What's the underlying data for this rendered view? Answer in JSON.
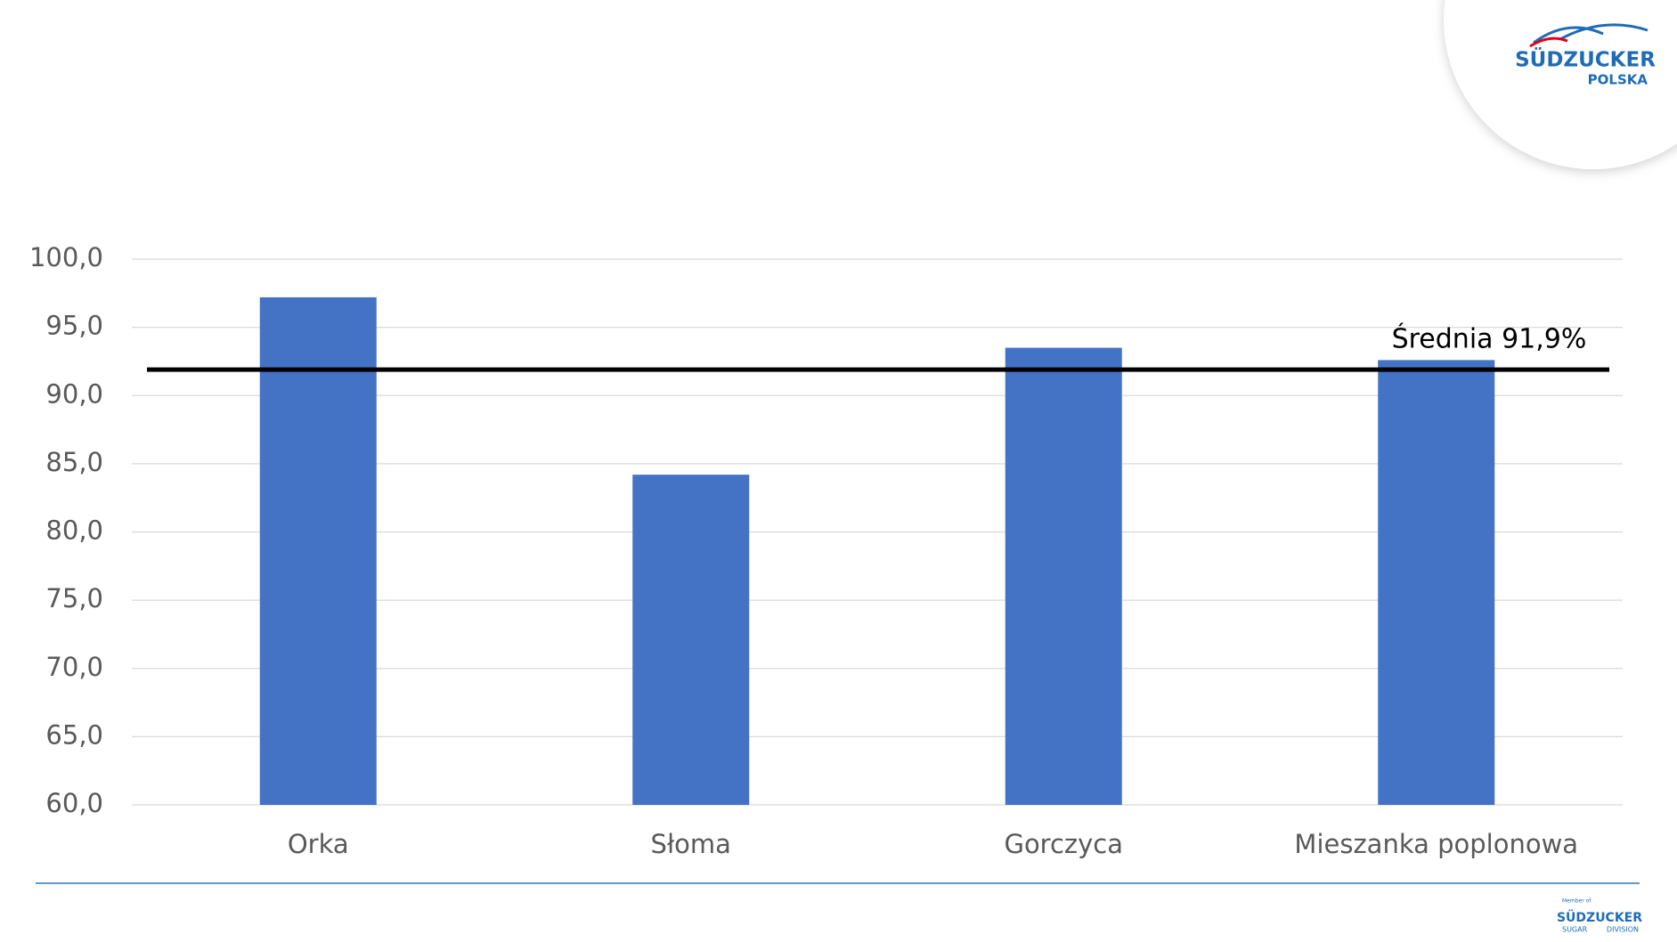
{
  "chart_data": {
    "type": "bar",
    "categories": [
      "Orka",
      "Słoma",
      "Gorczyca",
      "Mieszanka poplonowa"
    ],
    "values": [
      97.2,
      84.2,
      93.5,
      92.6
    ],
    "color": "#4472c4",
    "ylim": [
      60,
      100
    ],
    "yticks": [
      {
        "value": 60,
        "label": "60,0"
      },
      {
        "value": 65,
        "label": "65,0"
      },
      {
        "value": 70,
        "label": "70,0"
      },
      {
        "value": 75,
        "label": "75,0"
      },
      {
        "value": 80,
        "label": "80,0"
      },
      {
        "value": 85,
        "label": "85,0"
      },
      {
        "value": 90,
        "label": "90,0"
      },
      {
        "value": 95,
        "label": "95,0"
      },
      {
        "value": 100,
        "label": "100,0"
      }
    ],
    "grid": true,
    "reference_line": {
      "value": 91.9,
      "label": "Średnia 91,9%",
      "color": "#000000"
    }
  },
  "branding": {
    "top": {
      "name": "SÜDZUCKER",
      "sub": "POLSKA"
    },
    "bottom": {
      "member": "Member of",
      "name": "SÜDZUCKER",
      "left": "SUGAR",
      "right": "DIVISION"
    }
  }
}
